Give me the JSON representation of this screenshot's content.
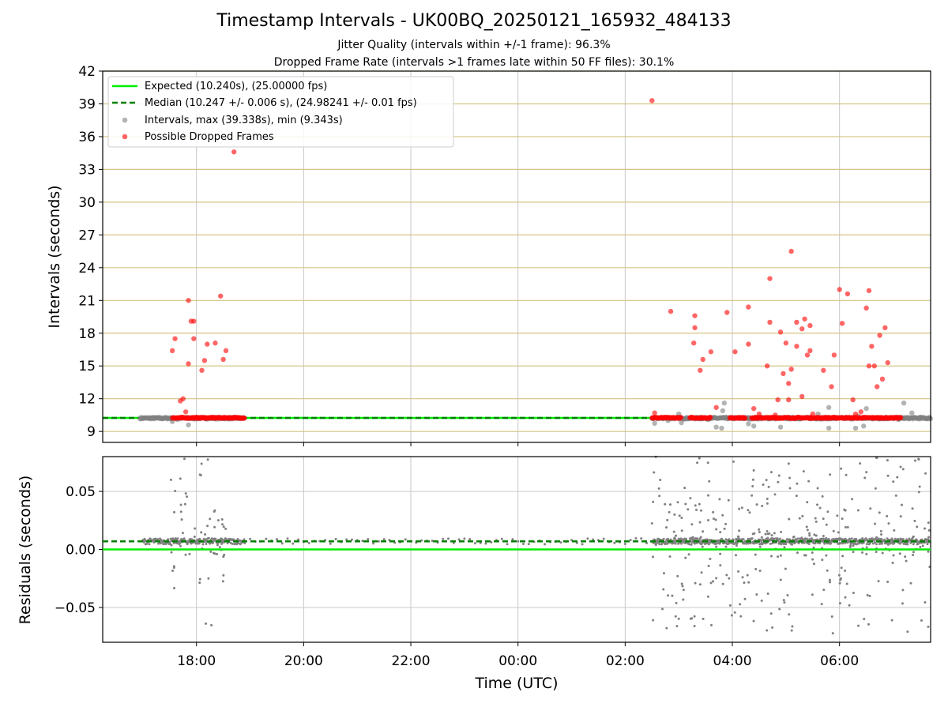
{
  "chart_data": [
    {
      "type": "scatter",
      "title": "Timestamp Intervals - UK00BQ_20250121_165932_484133",
      "subtitle_1": "Jitter Quality (intervals within +/-1 frame): 96.3%",
      "subtitle_2": "Dropped Frame Rate (intervals >1 frames late within 50 FF files): 30.1%",
      "xlabel": "",
      "ylabel": "Intervals (seconds)",
      "x_unit": "hours since 00:00 UTC on 2025-01-21",
      "xlim": [
        16.25,
        31.7
      ],
      "ylim": [
        8,
        42
      ],
      "yticks": [
        9,
        12,
        15,
        18,
        21,
        24,
        27,
        30,
        33,
        36,
        39,
        42
      ],
      "xticks": [
        18,
        20,
        22,
        24,
        26,
        28,
        30
      ],
      "grid": true,
      "legend_position": "top-left",
      "legend": [
        "Expected (10.240s), (25.00000 fps)",
        "Median (10.247 +/- 0.006 s), (24.98241 +/- 0.01 fps)",
        "Intervals, max (39.338s), min (9.343s)",
        "Possible Dropped Frames"
      ],
      "expected_interval": 10.24,
      "median_interval": 10.247,
      "interval_segments": [
        [
          16.95,
          18.9
        ],
        [
          26.5,
          31.7
        ]
      ],
      "dropped_frame_band": [
        [
          17.55,
          18.9
        ],
        [
          26.5,
          31.15
        ]
      ],
      "gray_outliers": [
        [
          17.55,
          9.9
        ],
        [
          17.65,
          10.1
        ],
        [
          17.85,
          9.6
        ],
        [
          26.55,
          9.75
        ],
        [
          26.8,
          10.0
        ],
        [
          27.0,
          10.6
        ],
        [
          27.05,
          9.8
        ],
        [
          27.4,
          10.3
        ],
        [
          27.55,
          10.1
        ],
        [
          27.7,
          9.4
        ],
        [
          27.8,
          9.3
        ],
        [
          27.82,
          10.9
        ],
        [
          27.85,
          11.6
        ],
        [
          28.3,
          9.7
        ],
        [
          28.4,
          9.5
        ],
        [
          28.9,
          9.4
        ],
        [
          28.8,
          10.3
        ],
        [
          29.6,
          10.6
        ],
        [
          29.8,
          9.3
        ],
        [
          29.8,
          11.2
        ],
        [
          30.3,
          9.3
        ],
        [
          30.35,
          10.4
        ],
        [
          30.45,
          9.5
        ],
        [
          30.5,
          11.1
        ],
        [
          31.2,
          11.6
        ],
        [
          31.1,
          10.1
        ],
        [
          31.35,
          10.7
        ],
        [
          31.5,
          10.3
        ]
      ],
      "dropped_points": [
        [
          17.55,
          16.4
        ],
        [
          17.6,
          17.5
        ],
        [
          17.7,
          11.8
        ],
        [
          17.75,
          12.0
        ],
        [
          17.8,
          10.8
        ],
        [
          17.85,
          21.0
        ],
        [
          17.9,
          19.1
        ],
        [
          17.95,
          19.1
        ],
        [
          17.85,
          15.2
        ],
        [
          17.95,
          17.5
        ],
        [
          18.1,
          14.6
        ],
        [
          18.15,
          15.5
        ],
        [
          18.2,
          17.0
        ],
        [
          18.35,
          17.1
        ],
        [
          18.45,
          21.4
        ],
        [
          18.5,
          15.6
        ],
        [
          18.55,
          16.4
        ],
        [
          18.7,
          34.6
        ],
        [
          26.5,
          39.3
        ],
        [
          26.55,
          10.7
        ],
        [
          26.85,
          20.0
        ],
        [
          27.3,
          19.6
        ],
        [
          27.3,
          18.5
        ],
        [
          27.28,
          17.1
        ],
        [
          27.4,
          14.6
        ],
        [
          27.45,
          15.6
        ],
        [
          27.6,
          16.3
        ],
        [
          27.7,
          11.2
        ],
        [
          27.9,
          19.9
        ],
        [
          28.05,
          16.3
        ],
        [
          28.3,
          17.0
        ],
        [
          28.3,
          20.4
        ],
        [
          28.4,
          11.1
        ],
        [
          28.5,
          10.6
        ],
        [
          28.65,
          15.0
        ],
        [
          28.7,
          19.0
        ],
        [
          28.7,
          23.0
        ],
        [
          28.8,
          10.5
        ],
        [
          28.85,
          11.9
        ],
        [
          28.9,
          18.1
        ],
        [
          28.95,
          14.3
        ],
        [
          29.0,
          17.1
        ],
        [
          29.05,
          11.9
        ],
        [
          29.05,
          13.4
        ],
        [
          29.1,
          14.7
        ],
        [
          29.2,
          16.8
        ],
        [
          29.2,
          19.0
        ],
        [
          29.3,
          12.2
        ],
        [
          29.3,
          18.4
        ],
        [
          29.35,
          19.3
        ],
        [
          29.4,
          16.0
        ],
        [
          29.45,
          16.4
        ],
        [
          29.45,
          18.7
        ],
        [
          29.5,
          10.6
        ],
        [
          29.1,
          25.5
        ],
        [
          29.7,
          14.6
        ],
        [
          29.85,
          13.1
        ],
        [
          29.9,
          16.0
        ],
        [
          30.0,
          22.0
        ],
        [
          30.05,
          18.9
        ],
        [
          30.15,
          21.6
        ],
        [
          30.25,
          11.9
        ],
        [
          30.3,
          10.6
        ],
        [
          30.5,
          20.3
        ],
        [
          30.55,
          21.9
        ],
        [
          30.55,
          15.0
        ],
        [
          30.6,
          16.8
        ],
        [
          30.65,
          15.0
        ],
        [
          30.7,
          13.1
        ],
        [
          30.75,
          17.8
        ],
        [
          30.8,
          13.8
        ],
        [
          30.85,
          18.5
        ],
        [
          30.9,
          15.3
        ],
        [
          30.4,
          10.8
        ]
      ]
    },
    {
      "type": "scatter",
      "xlabel": "Time (UTC)",
      "ylabel": "Residuals (seconds)",
      "xlim": [
        16.25,
        31.7
      ],
      "ylim": [
        -0.08,
        0.08
      ],
      "yticks": [
        0.05,
        0.0,
        -0.05
      ],
      "ytick_labels": [
        "0.05",
        "0.00",
        "−0.05"
      ],
      "xticks": [
        18,
        20,
        22,
        24,
        26,
        28,
        30
      ],
      "xtick_labels": [
        "18:00",
        "20:00",
        "22:00",
        "00:00",
        "02:00",
        "04:00",
        "06:00"
      ],
      "grid": true,
      "expected_residual": 0.0,
      "median_residual": 0.007,
      "residual_segments": [
        [
          17.0,
          18.9,
          0.007
        ],
        [
          18.9,
          26.5,
          0.007
        ],
        [
          26.5,
          31.7,
          0.007
        ]
      ],
      "residual_spread": [
        [
          17.5,
          18.6,
          0.075
        ],
        [
          26.5,
          31.7,
          0.08
        ]
      ]
    }
  ],
  "colors": {
    "expected": "#00ee00",
    "median": "#008000",
    "intervals": "#808080",
    "dropped": "#ff0000",
    "hgrid_top": "#d4c484",
    "grid": "#c8c8c8"
  }
}
